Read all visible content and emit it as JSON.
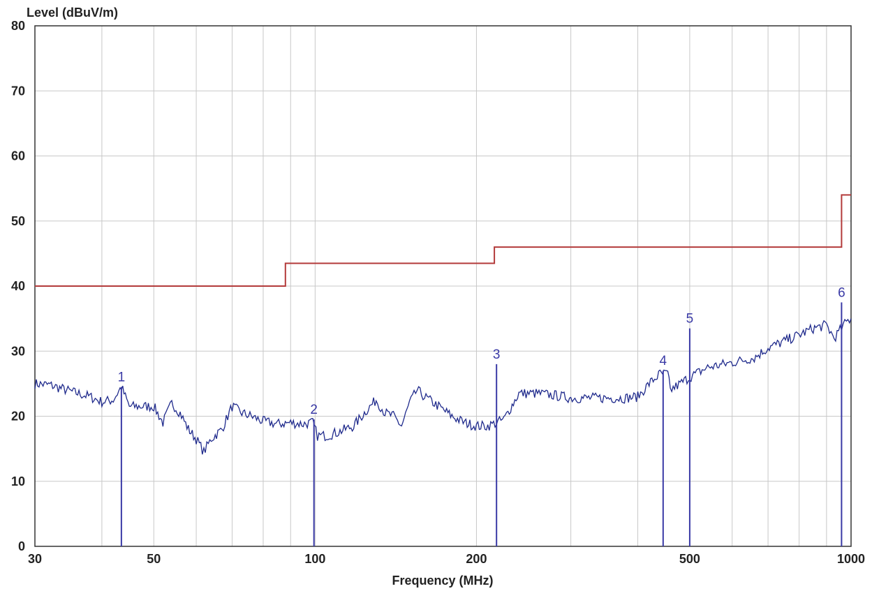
{
  "chart_data": {
    "type": "line",
    "title": "",
    "ylabel": "Level (dBuV/m)",
    "xlabel": "Frequency (MHz)",
    "x_scale": "log",
    "xlim": [
      30,
      1000
    ],
    "ylim": [
      0,
      80
    ],
    "grid": true,
    "x_tick_labels": [
      "30",
      "50",
      "100",
      "200",
      "500",
      "1000"
    ],
    "x_tick_values": [
      30,
      50,
      100,
      200,
      500,
      1000
    ],
    "x_gridlines": [
      30,
      40,
      50,
      60,
      70,
      80,
      90,
      100,
      200,
      300,
      400,
      500,
      600,
      700,
      800,
      900,
      1000
    ],
    "y_ticks": [
      0,
      10,
      20,
      30,
      40,
      50,
      60,
      70,
      80
    ],
    "colors": {
      "limit": "#b33a3a",
      "trace": "#1f2a8c",
      "marker": "#3a3aa6",
      "grid": "#c8c8c8"
    },
    "limit_line": {
      "color": "#b33a3a",
      "points": [
        [
          30,
          40
        ],
        [
          88,
          40
        ],
        [
          88,
          43.5
        ],
        [
          216,
          43.5
        ],
        [
          216,
          46
        ],
        [
          960,
          46
        ],
        [
          960,
          54
        ],
        [
          1000,
          54
        ]
      ]
    },
    "trace": {
      "color": "#1f2a8c",
      "points": [
        [
          30,
          25
        ],
        [
          32,
          24.8
        ],
        [
          35,
          23.8
        ],
        [
          38,
          23
        ],
        [
          40,
          22.2
        ],
        [
          42,
          22.5
        ],
        [
          43.5,
          24.5
        ],
        [
          45,
          21.5
        ],
        [
          48,
          21.5
        ],
        [
          50,
          21.5
        ],
        [
          52,
          19
        ],
        [
          54,
          22
        ],
        [
          56,
          20.5
        ],
        [
          58,
          18
        ],
        [
          60,
          16.5
        ],
        [
          62,
          14.5
        ],
        [
          64,
          16.5
        ],
        [
          67,
          18
        ],
        [
          70,
          21.5
        ],
        [
          73,
          20.5
        ],
        [
          76,
          20
        ],
        [
          80,
          19.2
        ],
        [
          85,
          18.8
        ],
        [
          90,
          19
        ],
        [
          95,
          18.8
        ],
        [
          99,
          19
        ],
        [
          101,
          17
        ],
        [
          105,
          17
        ],
        [
          110,
          17.5
        ],
        [
          118,
          18.5
        ],
        [
          125,
          21
        ],
        [
          130,
          22.5
        ],
        [
          135,
          20.5
        ],
        [
          140,
          20
        ],
        [
          145,
          18.5
        ],
        [
          150,
          22
        ],
        [
          155,
          24
        ],
        [
          160,
          23
        ],
        [
          170,
          21.5
        ],
        [
          180,
          20
        ],
        [
          190,
          19
        ],
        [
          200,
          18.5
        ],
        [
          210,
          18.5
        ],
        [
          218,
          19
        ],
        [
          225,
          19.5
        ],
        [
          240,
          23.5
        ],
        [
          260,
          23.5
        ],
        [
          280,
          23.2
        ],
        [
          300,
          22.8
        ],
        [
          320,
          22.8
        ],
        [
          350,
          22.8
        ],
        [
          380,
          22.8
        ],
        [
          400,
          23
        ],
        [
          420,
          25
        ],
        [
          440,
          26.5
        ],
        [
          455,
          26.5
        ],
        [
          460,
          24
        ],
        [
          480,
          25
        ],
        [
          500,
          26
        ],
        [
          540,
          27.5
        ],
        [
          580,
          28
        ],
        [
          620,
          28.5
        ],
        [
          660,
          29
        ],
        [
          700,
          30.5
        ],
        [
          750,
          31.5
        ],
        [
          800,
          32.5
        ],
        [
          850,
          33.5
        ],
        [
          900,
          34
        ],
        [
          930,
          32
        ],
        [
          960,
          33.5
        ],
        [
          980,
          34.5
        ],
        [
          1000,
          35
        ]
      ]
    },
    "markers": [
      {
        "label": "1",
        "freq": 43.5,
        "level": 24.5
      },
      {
        "label": "2",
        "freq": 99.5,
        "level": 19.5
      },
      {
        "label": "3",
        "freq": 218,
        "level": 28
      },
      {
        "label": "4",
        "freq": 446,
        "level": 27
      },
      {
        "label": "5",
        "freq": 500,
        "level": 33.5
      },
      {
        "label": "6",
        "freq": 960,
        "level": 37.5
      }
    ]
  }
}
